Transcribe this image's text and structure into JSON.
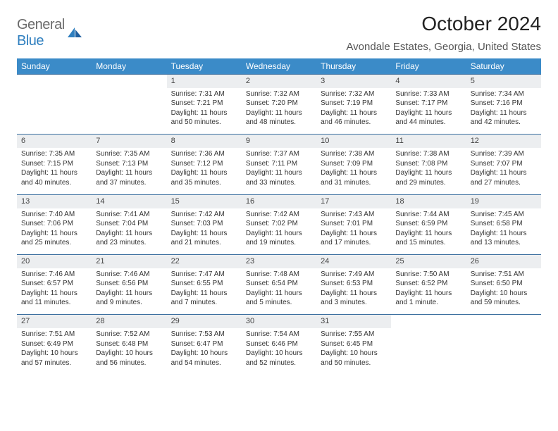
{
  "logo": {
    "text_general": "General",
    "text_blue": "Blue"
  },
  "header": {
    "month_title": "October 2024",
    "location": "Avondale Estates, Georgia, United States"
  },
  "calendar": {
    "day_headers": [
      "Sunday",
      "Monday",
      "Tuesday",
      "Wednesday",
      "Thursday",
      "Friday",
      "Saturday"
    ],
    "header_bg": "#3b8bc8",
    "daynum_bg": "#eceef0",
    "daynum_border": "#3b6f9f",
    "weeks": [
      [
        null,
        null,
        {
          "n": "1",
          "sr": "7:31 AM",
          "ss": "7:21 PM",
          "dl": "11 hours and 50 minutes."
        },
        {
          "n": "2",
          "sr": "7:32 AM",
          "ss": "7:20 PM",
          "dl": "11 hours and 48 minutes."
        },
        {
          "n": "3",
          "sr": "7:32 AM",
          "ss": "7:19 PM",
          "dl": "11 hours and 46 minutes."
        },
        {
          "n": "4",
          "sr": "7:33 AM",
          "ss": "7:17 PM",
          "dl": "11 hours and 44 minutes."
        },
        {
          "n": "5",
          "sr": "7:34 AM",
          "ss": "7:16 PM",
          "dl": "11 hours and 42 minutes."
        }
      ],
      [
        {
          "n": "6",
          "sr": "7:35 AM",
          "ss": "7:15 PM",
          "dl": "11 hours and 40 minutes."
        },
        {
          "n": "7",
          "sr": "7:35 AM",
          "ss": "7:13 PM",
          "dl": "11 hours and 37 minutes."
        },
        {
          "n": "8",
          "sr": "7:36 AM",
          "ss": "7:12 PM",
          "dl": "11 hours and 35 minutes."
        },
        {
          "n": "9",
          "sr": "7:37 AM",
          "ss": "7:11 PM",
          "dl": "11 hours and 33 minutes."
        },
        {
          "n": "10",
          "sr": "7:38 AM",
          "ss": "7:09 PM",
          "dl": "11 hours and 31 minutes."
        },
        {
          "n": "11",
          "sr": "7:38 AM",
          "ss": "7:08 PM",
          "dl": "11 hours and 29 minutes."
        },
        {
          "n": "12",
          "sr": "7:39 AM",
          "ss": "7:07 PM",
          "dl": "11 hours and 27 minutes."
        }
      ],
      [
        {
          "n": "13",
          "sr": "7:40 AM",
          "ss": "7:06 PM",
          "dl": "11 hours and 25 minutes."
        },
        {
          "n": "14",
          "sr": "7:41 AM",
          "ss": "7:04 PM",
          "dl": "11 hours and 23 minutes."
        },
        {
          "n": "15",
          "sr": "7:42 AM",
          "ss": "7:03 PM",
          "dl": "11 hours and 21 minutes."
        },
        {
          "n": "16",
          "sr": "7:42 AM",
          "ss": "7:02 PM",
          "dl": "11 hours and 19 minutes."
        },
        {
          "n": "17",
          "sr": "7:43 AM",
          "ss": "7:01 PM",
          "dl": "11 hours and 17 minutes."
        },
        {
          "n": "18",
          "sr": "7:44 AM",
          "ss": "6:59 PM",
          "dl": "11 hours and 15 minutes."
        },
        {
          "n": "19",
          "sr": "7:45 AM",
          "ss": "6:58 PM",
          "dl": "11 hours and 13 minutes."
        }
      ],
      [
        {
          "n": "20",
          "sr": "7:46 AM",
          "ss": "6:57 PM",
          "dl": "11 hours and 11 minutes."
        },
        {
          "n": "21",
          "sr": "7:46 AM",
          "ss": "6:56 PM",
          "dl": "11 hours and 9 minutes."
        },
        {
          "n": "22",
          "sr": "7:47 AM",
          "ss": "6:55 PM",
          "dl": "11 hours and 7 minutes."
        },
        {
          "n": "23",
          "sr": "7:48 AM",
          "ss": "6:54 PM",
          "dl": "11 hours and 5 minutes."
        },
        {
          "n": "24",
          "sr": "7:49 AM",
          "ss": "6:53 PM",
          "dl": "11 hours and 3 minutes."
        },
        {
          "n": "25",
          "sr": "7:50 AM",
          "ss": "6:52 PM",
          "dl": "11 hours and 1 minute."
        },
        {
          "n": "26",
          "sr": "7:51 AM",
          "ss": "6:50 PM",
          "dl": "10 hours and 59 minutes."
        }
      ],
      [
        {
          "n": "27",
          "sr": "7:51 AM",
          "ss": "6:49 PM",
          "dl": "10 hours and 57 minutes."
        },
        {
          "n": "28",
          "sr": "7:52 AM",
          "ss": "6:48 PM",
          "dl": "10 hours and 56 minutes."
        },
        {
          "n": "29",
          "sr": "7:53 AM",
          "ss": "6:47 PM",
          "dl": "10 hours and 54 minutes."
        },
        {
          "n": "30",
          "sr": "7:54 AM",
          "ss": "6:46 PM",
          "dl": "10 hours and 52 minutes."
        },
        {
          "n": "31",
          "sr": "7:55 AM",
          "ss": "6:45 PM",
          "dl": "10 hours and 50 minutes."
        },
        null,
        null
      ]
    ],
    "labels": {
      "sunrise_prefix": "Sunrise: ",
      "sunset_prefix": "Sunset: ",
      "daylight_prefix": "Daylight: "
    }
  }
}
